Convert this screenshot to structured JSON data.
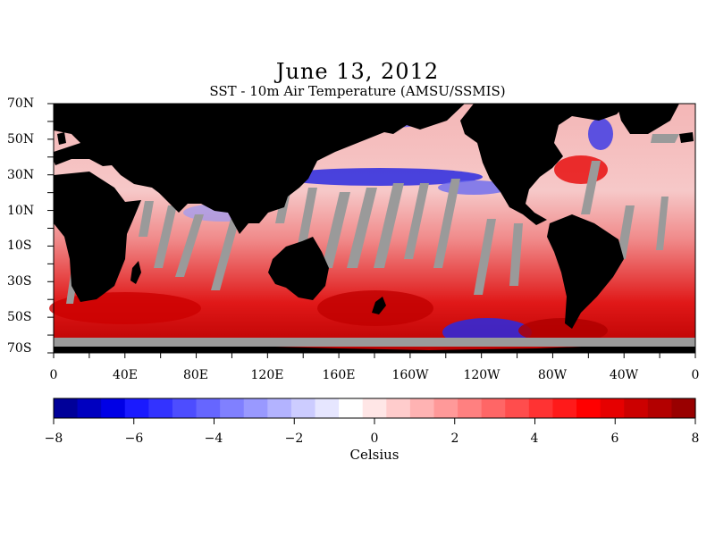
{
  "map": {
    "title": "June 13, 2012",
    "subtitle": "SST - 10m Air Temperature (AMSU/SSMIS)",
    "lat_labels": [
      "70N",
      "50N",
      "30N",
      "10N",
      "10S",
      "30S",
      "50S",
      "70S"
    ],
    "lon_labels": [
      "0",
      "40E",
      "80E",
      "120E",
      "160E",
      "160W",
      "120W",
      "80W",
      "40W",
      "0"
    ],
    "colors": {
      "land": "#000000",
      "missing": "#9a9a9a",
      "warm": "#ff1a1a",
      "cool": "#1a1aff"
    }
  },
  "colorbar": {
    "title": "Celsius",
    "tick_labels": [
      "−8",
      "−6",
      "−4",
      "−2",
      "0",
      "2",
      "4",
      "6",
      "8"
    ],
    "range": [
      -8,
      8
    ],
    "colors": [
      "#000099",
      "#0000c0",
      "#0000e6",
      "#1a1aff",
      "#3333ff",
      "#4d4dff",
      "#6666ff",
      "#8080ff",
      "#9999ff",
      "#b3b3ff",
      "#ccccff",
      "#e6e6ff",
      "#ffffff",
      "#ffe6e6",
      "#ffcccc",
      "#ffb3b3",
      "#ff9999",
      "#ff8080",
      "#ff6666",
      "#ff4d4d",
      "#ff3333",
      "#ff1a1a",
      "#ff0000",
      "#e60000",
      "#cc0000",
      "#b30000",
      "#990000"
    ]
  }
}
